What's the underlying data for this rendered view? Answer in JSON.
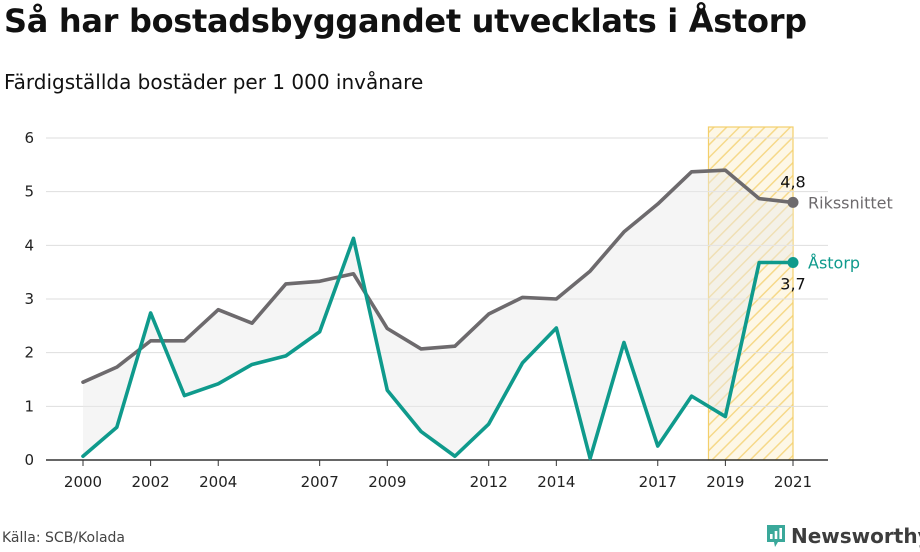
{
  "header": {
    "title": "Så har bostadsbyggandet utvecklats i Åstorp",
    "subtitle": "Färdigställda bostäder per 1 000 invånare"
  },
  "footer": {
    "source": "Källa: SCB/Kolada",
    "brand": "Newsworthy",
    "brand_icon": "newsworthy-logo-icon",
    "brand_color": "#3aa89a"
  },
  "chart_data": {
    "type": "line",
    "x": [
      2000,
      2001,
      2002,
      2003,
      2004,
      2005,
      2006,
      2007,
      2008,
      2009,
      2010,
      2011,
      2012,
      2013,
      2014,
      2015,
      2016,
      2017,
      2018,
      2019,
      2020,
      2021
    ],
    "x_tick_labels": [
      "2000",
      "2002",
      "2004",
      "2007",
      "2009",
      "2012",
      "2014",
      "2017",
      "2019",
      "2021"
    ],
    "ylim": [
      0,
      6
    ],
    "y_ticks": [
      0,
      1,
      2,
      3,
      4,
      5,
      6
    ],
    "grid": true,
    "highlight_range": [
      2018.5,
      2021
    ],
    "series": [
      {
        "name": "Rikssnittet",
        "color": "#6d6a6d",
        "values": [
          1.45,
          1.73,
          2.22,
          2.22,
          2.8,
          2.55,
          3.28,
          3.33,
          3.47,
          2.45,
          2.07,
          2.12,
          2.72,
          3.03,
          3.0,
          3.52,
          4.25,
          4.77,
          5.37,
          5.4,
          4.87,
          4.8
        ],
        "end_label": "4,8"
      },
      {
        "name": "Åstorp",
        "color": "#0f9a8c",
        "values": [
          0.07,
          0.61,
          2.74,
          1.2,
          1.42,
          1.78,
          1.94,
          2.39,
          4.13,
          1.3,
          0.53,
          0.07,
          0.67,
          1.81,
          2.46,
          0.03,
          2.19,
          0.26,
          1.19,
          0.81,
          3.68,
          3.68
        ],
        "end_label": "3,7"
      }
    ]
  }
}
